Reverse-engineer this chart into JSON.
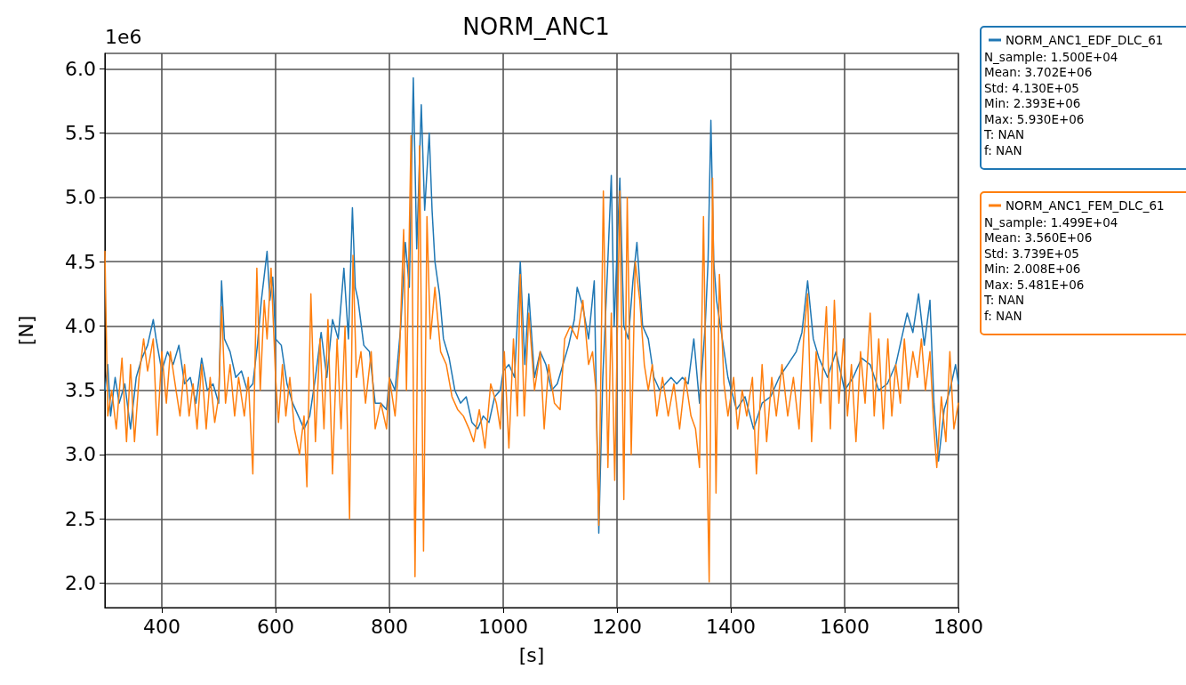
{
  "chart_data": {
    "type": "line",
    "title": "NORM_ANC1",
    "xlabel": "[s]",
    "ylabel": "[N]",
    "xlim": [
      300,
      1800
    ],
    "xticks": [
      400,
      600,
      800,
      1000,
      1200,
      1400,
      1600,
      1800
    ],
    "ylim": [
      1.81,
      6.12
    ],
    "yticks": [
      {
        "value": 2,
        "label": "2.0"
      },
      {
        "value": 2.5,
        "label": "2.5"
      },
      {
        "value": 3,
        "label": "3.0"
      },
      {
        "value": 3.5,
        "label": "3.5"
      },
      {
        "value": 4,
        "label": "4.0"
      },
      {
        "value": 4.5,
        "label": "4.5"
      },
      {
        "value": 5,
        "label": "5.0"
      },
      {
        "value": 5.5,
        "label": "5.5"
      },
      {
        "value": 6,
        "label": "6.0"
      }
    ],
    "grid": true,
    "legend": "right",
    "marker": "none",
    "line_style": "solid",
    "annotations": [
      "1e6",
      "N_sample: 1.500E+04\nMean: 3.702E+06\nStd: 4.130E+05\nMin: 2.393E+06\nMax: 5.930E+06\nT: NAN\nf: NAN",
      "N_sample: 1.499E+04\nMean: 3.560E+06\nStd: 3.739E+05\nMin: 2.008E+06\nMax: 5.481E+06\nT: NAN\nf: NAN"
    ],
    "series": [
      {
        "name": "NORM_ANC1_EDF_DLC_61",
        "color": "#1f77b4",
        "x": [
          300,
          305,
          310,
          318,
          325,
          335,
          345,
          355,
          365,
          375,
          385,
          390,
          400,
          410,
          420,
          430,
          440,
          450,
          460,
          470,
          480,
          490,
          500,
          505,
          510,
          520,
          530,
          540,
          550,
          560,
          568,
          575,
          585,
          590,
          595,
          600,
          610,
          620,
          630,
          640,
          650,
          660,
          670,
          680,
          690,
          700,
          710,
          720,
          728,
          735,
          740,
          745,
          755,
          765,
          775,
          785,
          795,
          800,
          810,
          820,
          828,
          835,
          842,
          848,
          856,
          862,
          870,
          875,
          880,
          888,
          895,
          905,
          915,
          925,
          935,
          945,
          955,
          965,
          975,
          985,
          995,
          1000,
          1010,
          1020,
          1030,
          1038,
          1045,
          1055,
          1065,
          1075,
          1085,
          1095,
          1105,
          1115,
          1125,
          1130,
          1140,
          1150,
          1160,
          1168,
          1175,
          1182,
          1190,
          1195,
          1205,
          1212,
          1220,
          1228,
          1235,
          1245,
          1255,
          1265,
          1275,
          1285,
          1295,
          1305,
          1315,
          1325,
          1335,
          1345,
          1355,
          1360,
          1365,
          1370,
          1375,
          1385,
          1395,
          1410,
          1425,
          1440,
          1455,
          1470,
          1485,
          1500,
          1515,
          1525,
          1535,
          1545,
          1555,
          1570,
          1585,
          1600,
          1615,
          1630,
          1645,
          1660,
          1675,
          1690,
          1700,
          1710,
          1720,
          1730,
          1740,
          1750,
          1757,
          1765,
          1775,
          1785,
          1795,
          1800
        ],
        "values": [
          3.5,
          3.7,
          3.3,
          3.6,
          3.4,
          3.55,
          3.2,
          3.6,
          3.75,
          3.85,
          4.05,
          3.9,
          3.65,
          3.8,
          3.7,
          3.85,
          3.55,
          3.6,
          3.4,
          3.75,
          3.5,
          3.55,
          3.4,
          4.35,
          3.9,
          3.8,
          3.6,
          3.65,
          3.5,
          3.55,
          3.85,
          4.2,
          4.58,
          4.2,
          4.38,
          3.9,
          3.85,
          3.55,
          3.4,
          3.3,
          3.2,
          3.3,
          3.6,
          3.95,
          3.6,
          4.05,
          3.9,
          4.45,
          3.9,
          4.92,
          4.3,
          4.2,
          3.85,
          3.8,
          3.4,
          3.4,
          3.35,
          3.6,
          3.5,
          4.0,
          4.65,
          4.3,
          5.93,
          4.6,
          5.72,
          4.9,
          5.5,
          4.9,
          4.5,
          4.25,
          3.9,
          3.75,
          3.5,
          3.4,
          3.45,
          3.25,
          3.2,
          3.3,
          3.25,
          3.45,
          3.5,
          3.65,
          3.7,
          3.6,
          4.5,
          3.7,
          4.25,
          3.6,
          3.8,
          3.7,
          3.5,
          3.55,
          3.7,
          3.85,
          4.05,
          4.3,
          4.15,
          3.9,
          4.35,
          2.39,
          3.6,
          4.3,
          5.17,
          4.0,
          5.15,
          4.0,
          3.9,
          4.35,
          4.65,
          4.0,
          3.9,
          3.6,
          3.5,
          3.55,
          3.6,
          3.55,
          3.6,
          3.55,
          3.9,
          3.4,
          4.0,
          4.5,
          5.6,
          4.5,
          4.2,
          3.9,
          3.6,
          3.35,
          3.45,
          3.2,
          3.4,
          3.45,
          3.6,
          3.7,
          3.8,
          3.95,
          4.35,
          3.9,
          3.75,
          3.6,
          3.8,
          3.5,
          3.6,
          3.75,
          3.7,
          3.5,
          3.55,
          3.7,
          3.9,
          4.1,
          3.95,
          4.25,
          3.85,
          4.2,
          3.4,
          2.95,
          3.35,
          3.5,
          3.7,
          3.55
        ]
      },
      {
        "name": "NORM_ANC1_FEM_DLC_61",
        "color": "#ff7f0e",
        "x": [
          300,
          305,
          312,
          320,
          330,
          338,
          345,
          352,
          360,
          368,
          375,
          385,
          392,
          400,
          408,
          415,
          425,
          432,
          440,
          448,
          455,
          462,
          470,
          478,
          485,
          493,
          500,
          505,
          512,
          520,
          528,
          535,
          545,
          552,
          560,
          567,
          573,
          580,
          585,
          592,
          600,
          605,
          612,
          618,
          625,
          633,
          642,
          650,
          655,
          662,
          670,
          678,
          685,
          692,
          700,
          708,
          715,
          722,
          730,
          736,
          742,
          750,
          758,
          768,
          775,
          785,
          795,
          800,
          810,
          818,
          825,
          830,
          838,
          845,
          853,
          860,
          866,
          872,
          880,
          890,
          900,
          910,
          920,
          930,
          940,
          948,
          958,
          968,
          978,
          988,
          995,
          1002,
          1010,
          1018,
          1025,
          1030,
          1037,
          1045,
          1055,
          1065,
          1072,
          1080,
          1090,
          1100,
          1108,
          1118,
          1130,
          1140,
          1150,
          1157,
          1163,
          1168,
          1176,
          1184,
          1190,
          1196,
          1205,
          1212,
          1218,
          1225,
          1232,
          1240,
          1248,
          1255,
          1262,
          1270,
          1280,
          1290,
          1300,
          1310,
          1320,
          1330,
          1338,
          1345,
          1352,
          1358,
          1362,
          1368,
          1374,
          1380,
          1388,
          1395,
          1405,
          1412,
          1420,
          1428,
          1438,
          1445,
          1455,
          1463,
          1472,
          1480,
          1490,
          1500,
          1510,
          1520,
          1528,
          1535,
          1542,
          1550,
          1558,
          1568,
          1575,
          1582,
          1590,
          1598,
          1605,
          1612,
          1620,
          1628,
          1636,
          1645,
          1652,
          1660,
          1668,
          1676,
          1683,
          1690,
          1698,
          1705,
          1712,
          1720,
          1728,
          1735,
          1742,
          1750,
          1757,
          1762,
          1770,
          1778,
          1785,
          1792,
          1800
        ],
        "values": [
          4.58,
          3.3,
          3.5,
          3.2,
          3.75,
          3.1,
          3.7,
          3.1,
          3.6,
          3.9,
          3.65,
          3.9,
          3.15,
          3.8,
          3.4,
          3.8,
          3.5,
          3.3,
          3.7,
          3.3,
          3.55,
          3.2,
          3.7,
          3.2,
          3.6,
          3.25,
          3.45,
          4.15,
          3.4,
          3.7,
          3.3,
          3.6,
          3.3,
          3.6,
          2.85,
          4.45,
          3.5,
          4.2,
          3.9,
          4.45,
          3.6,
          3.25,
          3.7,
          3.3,
          3.6,
          3.2,
          3.0,
          3.3,
          2.75,
          4.25,
          3.1,
          3.9,
          3.2,
          4.05,
          2.85,
          3.9,
          3.2,
          4.0,
          2.5,
          4.55,
          3.6,
          3.8,
          3.4,
          3.8,
          3.2,
          3.4,
          3.2,
          3.6,
          3.3,
          3.8,
          4.75,
          3.5,
          5.48,
          2.05,
          5.4,
          2.25,
          4.85,
          3.9,
          4.3,
          3.8,
          3.7,
          3.45,
          3.35,
          3.3,
          3.2,
          3.1,
          3.35,
          3.05,
          3.55,
          3.4,
          3.2,
          3.8,
          3.05,
          3.9,
          3.3,
          4.4,
          3.3,
          4.1,
          3.5,
          3.8,
          3.2,
          3.7,
          3.4,
          3.35,
          3.9,
          4.0,
          3.9,
          4.2,
          3.7,
          3.8,
          3.5,
          2.45,
          5.05,
          2.9,
          4.1,
          2.8,
          5.05,
          2.65,
          5.0,
          3.0,
          4.5,
          4.2,
          3.7,
          3.5,
          3.7,
          3.3,
          3.6,
          3.3,
          3.55,
          3.2,
          3.6,
          3.3,
          3.2,
          2.9,
          4.85,
          3.0,
          2.01,
          5.15,
          2.7,
          4.4,
          3.55,
          3.3,
          3.6,
          3.2,
          3.5,
          3.3,
          3.6,
          2.85,
          3.7,
          3.1,
          3.6,
          3.3,
          3.7,
          3.3,
          3.6,
          3.2,
          3.9,
          4.25,
          3.1,
          3.8,
          3.4,
          4.15,
          3.2,
          4.2,
          3.4,
          3.9,
          3.3,
          3.7,
          3.1,
          3.8,
          3.4,
          4.1,
          3.3,
          3.9,
          3.2,
          3.9,
          3.3,
          3.7,
          3.4,
          3.9,
          3.5,
          3.8,
          3.6,
          3.9,
          3.5,
          3.8,
          3.2,
          2.9,
          3.45,
          3.1,
          3.8,
          3.2,
          3.4
        ]
      }
    ]
  }
}
